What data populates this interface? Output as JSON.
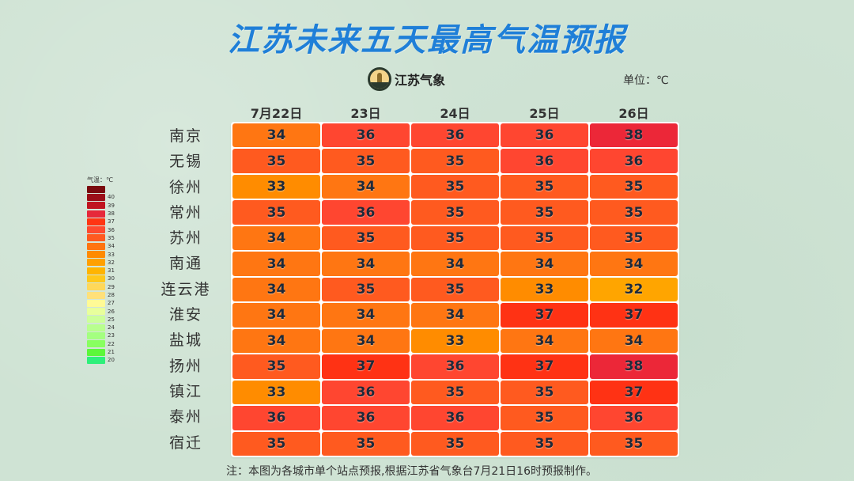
{
  "title": "江苏未来五天最高气温预报",
  "logo": {
    "text": "江苏气象",
    "icon": "jiangsu-meteorology-emblem"
  },
  "unit_label": "单位：℃",
  "columns": [
    "7月22日",
    "23日",
    "24日",
    "25日",
    "26日"
  ],
  "rows": [
    {
      "city": "南京",
      "values": [
        34,
        36,
        36,
        36,
        38
      ]
    },
    {
      "city": "无锡",
      "values": [
        35,
        35,
        35,
        36,
        36
      ]
    },
    {
      "city": "徐州",
      "values": [
        33,
        34,
        35,
        35,
        35
      ]
    },
    {
      "city": "常州",
      "values": [
        35,
        36,
        35,
        35,
        35
      ]
    },
    {
      "city": "苏州",
      "values": [
        34,
        35,
        35,
        35,
        35
      ]
    },
    {
      "city": "南通",
      "values": [
        34,
        34,
        34,
        34,
        34
      ]
    },
    {
      "city": "连云港",
      "values": [
        34,
        35,
        35,
        33,
        32
      ]
    },
    {
      "city": "淮安",
      "values": [
        34,
        34,
        34,
        37,
        37
      ]
    },
    {
      "city": "盐城",
      "values": [
        34,
        34,
        33,
        34,
        34
      ]
    },
    {
      "city": "扬州",
      "values": [
        35,
        37,
        36,
        37,
        38
      ]
    },
    {
      "city": "镇江",
      "values": [
        33,
        36,
        35,
        35,
        37
      ]
    },
    {
      "city": "泰州",
      "values": [
        36,
        36,
        36,
        35,
        36
      ]
    },
    {
      "city": "宿迁",
      "values": [
        35,
        35,
        35,
        35,
        35
      ]
    }
  ],
  "legend": {
    "title": "气温：℃",
    "items": [
      {
        "label": "",
        "color": "#7a0a0f"
      },
      {
        "label": "40",
        "color": "#9b0e18"
      },
      {
        "label": "39",
        "color": "#c0141f"
      },
      {
        "label": "38",
        "color": "#e6283a"
      },
      {
        "label": "37",
        "color": "#ff3512"
      },
      {
        "label": "36",
        "color": "#ff4a2f"
      },
      {
        "label": "35",
        "color": "#ff5a20"
      },
      {
        "label": "34",
        "color": "#ff7410"
      },
      {
        "label": "33",
        "color": "#ff8a00"
      },
      {
        "label": "32",
        "color": "#ffa000"
      },
      {
        "label": "31",
        "color": "#ffb400"
      },
      {
        "label": "30",
        "color": "#ffc81a"
      },
      {
        "label": "29",
        "color": "#ffd85a"
      },
      {
        "label": "28",
        "color": "#ffe07a"
      },
      {
        "label": "27",
        "color": "#fffa96"
      },
      {
        "label": "26",
        "color": "#e8ff9c"
      },
      {
        "label": "25",
        "color": "#ccff9a"
      },
      {
        "label": "24",
        "color": "#b8ff8e"
      },
      {
        "label": "23",
        "color": "#a4ff80"
      },
      {
        "label": "22",
        "color": "#88ff60"
      },
      {
        "label": "21",
        "color": "#5cf73a"
      },
      {
        "label": "20",
        "color": "#2ef07a"
      }
    ]
  },
  "temp_colors": {
    "32": "#ffa500",
    "33": "#ff8c00",
    "34": "#ff7612",
    "35": "#ff5a1f",
    "36": "#ff4630",
    "37": "#ff3214",
    "38": "#ec2738"
  },
  "note": "注：本图为各城市单个站点预报,根据江苏省气象台7月21日16时预报制作。",
  "chart_data": {
    "type": "heatmap",
    "title": "江苏未来五天最高气温预报",
    "unit": "℃",
    "x": [
      "7月22日",
      "23日",
      "24日",
      "25日",
      "26日"
    ],
    "y": [
      "南京",
      "无锡",
      "徐州",
      "常州",
      "苏州",
      "南通",
      "连云港",
      "淮安",
      "盐城",
      "扬州",
      "镇江",
      "泰州",
      "宿迁"
    ],
    "values": [
      [
        34,
        36,
        36,
        36,
        38
      ],
      [
        35,
        35,
        35,
        36,
        36
      ],
      [
        33,
        34,
        35,
        35,
        35
      ],
      [
        35,
        36,
        35,
        35,
        35
      ],
      [
        34,
        35,
        35,
        35,
        35
      ],
      [
        34,
        34,
        34,
        34,
        34
      ],
      [
        34,
        35,
        35,
        33,
        32
      ],
      [
        34,
        34,
        34,
        37,
        37
      ],
      [
        34,
        34,
        33,
        34,
        34
      ],
      [
        35,
        37,
        36,
        37,
        38
      ],
      [
        33,
        36,
        35,
        35,
        37
      ],
      [
        36,
        36,
        36,
        35,
        36
      ],
      [
        35,
        35,
        35,
        35,
        35
      ]
    ],
    "colorbar": {
      "title": "气温：℃",
      "range": [
        20,
        40
      ],
      "position": "left"
    },
    "annotations": [
      "注：本图为各城市单个站点预报,根据江苏省气象台7月21日16时预报制作。"
    ]
  }
}
